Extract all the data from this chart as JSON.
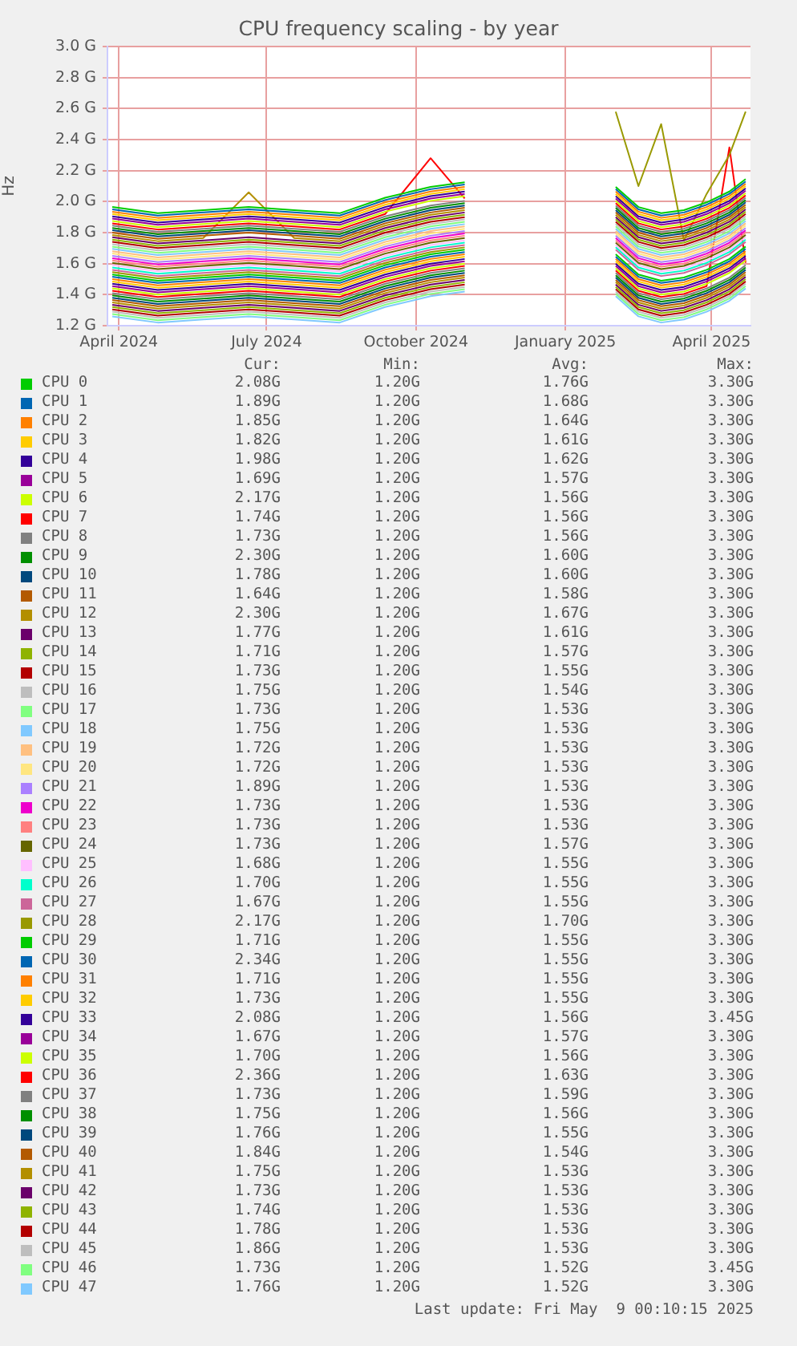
{
  "chart_data": {
    "type": "line",
    "title": "CPU frequency scaling - by year",
    "ylabel": "Hz",
    "x": [
      "2024-03-28",
      "2024-04-25",
      "2024-05-23",
      "2024-06-20",
      "2024-07-18",
      "2024-08-15",
      "2024-09-12",
      "2024-10-10",
      "2024-10-31",
      "2024-12-15",
      "2025-02-01",
      "2025-02-15",
      "2025-03-01",
      "2025-03-15",
      "2025-03-29",
      "2025-04-12",
      "2025-04-22"
    ],
    "xlim": [
      "2024-03-25",
      "2025-04-25"
    ],
    "xticks": [
      {
        "value": "2024-04-01",
        "label": "April 2024"
      },
      {
        "value": "2024-07-01",
        "label": "July 2024"
      },
      {
        "value": "2024-10-01",
        "label": "October 2024"
      },
      {
        "value": "2025-01-01",
        "label": "January 2025"
      },
      {
        "value": "2025-04-01",
        "label": "April 2025"
      }
    ],
    "ylim": [
      1.2,
      3.0
    ],
    "yticks": [
      {
        "value": 1.2,
        "label": "1.2 G"
      },
      {
        "value": 1.4,
        "label": "1.4 G"
      },
      {
        "value": 1.6,
        "label": "1.6 G"
      },
      {
        "value": 1.8,
        "label": "1.8 G"
      },
      {
        "value": 2.0,
        "label": "2.0 G"
      },
      {
        "value": 2.2,
        "label": "2.2 G"
      },
      {
        "value": 2.4,
        "label": "2.4 G"
      },
      {
        "value": 2.6,
        "label": "2.6 G"
      },
      {
        "value": 2.8,
        "label": "2.8 G"
      },
      {
        "value": 3.0,
        "label": "3.0 G"
      }
    ],
    "grid": true,
    "legend": "bottom",
    "series": [
      {
        "name": "CPU 0",
        "color": "#00cc00",
        "values": [
          1.965,
          1.925,
          1.945,
          1.965,
          1.945,
          1.925,
          2.025,
          2.095,
          2.125,
          null,
          2.095,
          1.965,
          1.925,
          1.945,
          1.995,
          2.065,
          2.145
        ]
      },
      {
        "name": "CPU 1",
        "color": "#0066b3",
        "values": [
          1.95,
          1.91,
          1.93,
          1.95,
          1.93,
          1.91,
          2.01,
          2.08,
          2.11,
          null,
          2.08,
          1.95,
          1.91,
          1.93,
          1.98,
          2.05,
          2.13
        ]
      },
      {
        "name": "CPU 2",
        "color": "#ff8000",
        "values": [
          1.935,
          1.895,
          1.915,
          1.935,
          1.915,
          1.895,
          1.995,
          2.065,
          2.095,
          null,
          2.065,
          1.935,
          1.895,
          1.915,
          1.965,
          2.035,
          2.115
        ]
      },
      {
        "name": "CPU 3",
        "color": "#ffcc00",
        "values": [
          1.92,
          1.88,
          1.9,
          1.92,
          1.9,
          1.88,
          1.98,
          2.05,
          2.08,
          null,
          2.05,
          1.92,
          1.88,
          1.9,
          1.95,
          2.02,
          2.1
        ]
      },
      {
        "name": "CPU 4",
        "color": "#330099",
        "values": [
          1.905,
          1.865,
          1.885,
          1.905,
          1.885,
          1.865,
          1.965,
          2.035,
          2.065,
          null,
          2.035,
          1.905,
          1.865,
          1.885,
          1.935,
          2.005,
          2.085
        ]
      },
      {
        "name": "CPU 5",
        "color": "#990099",
        "values": [
          1.89,
          1.85,
          1.87,
          1.89,
          1.87,
          1.85,
          1.95,
          2.02,
          2.05,
          null,
          2.02,
          1.89,
          1.85,
          1.87,
          1.92,
          1.99,
          2.07
        ]
      },
      {
        "name": "CPU 6",
        "color": "#ccff00",
        "values": [
          1.875,
          1.835,
          1.855,
          1.875,
          1.855,
          1.835,
          1.935,
          2.005,
          2.035,
          null,
          2.005,
          1.875,
          1.835,
          1.855,
          1.905,
          1.975,
          2.055
        ]
      },
      {
        "name": "CPU 7",
        "color": "#ff0000",
        "values": [
          1.86,
          1.82,
          1.84,
          1.86,
          1.84,
          1.82,
          1.92,
          2.28,
          2.02,
          null,
          1.99,
          1.86,
          1.82,
          1.84,
          1.89,
          1.96,
          2.04
        ]
      },
      {
        "name": "CPU 8",
        "color": "#808080",
        "values": [
          1.845,
          1.805,
          1.825,
          1.845,
          1.825,
          1.805,
          1.905,
          1.975,
          2.005,
          null,
          1.975,
          1.845,
          1.805,
          1.825,
          1.875,
          1.945,
          2.025
        ]
      },
      {
        "name": "CPU 9",
        "color": "#008f00",
        "values": [
          1.83,
          1.79,
          1.81,
          1.83,
          1.81,
          1.79,
          1.89,
          1.96,
          1.99,
          null,
          1.96,
          1.83,
          1.79,
          1.81,
          1.86,
          1.93,
          2.01
        ]
      },
      {
        "name": "CPU 10",
        "color": "#00487d",
        "values": [
          1.815,
          1.775,
          1.795,
          1.815,
          1.795,
          1.775,
          1.875,
          1.945,
          1.975,
          null,
          1.945,
          1.815,
          1.775,
          1.795,
          1.845,
          1.915,
          1.995
        ]
      },
      {
        "name": "CPU 11",
        "color": "#b35a00",
        "values": [
          1.8,
          1.76,
          1.78,
          1.8,
          1.78,
          1.76,
          1.86,
          1.93,
          1.96,
          null,
          1.93,
          1.8,
          1.76,
          1.78,
          1.83,
          1.9,
          1.98
        ]
      },
      {
        "name": "CPU 12",
        "color": "#b38f00",
        "values": [
          1.785,
          1.745,
          1.765,
          2.06,
          1.765,
          1.745,
          1.845,
          1.915,
          1.945,
          null,
          1.915,
          1.785,
          1.745,
          1.765,
          1.815,
          1.885,
          1.965
        ]
      },
      {
        "name": "CPU 13",
        "color": "#6b006b",
        "values": [
          1.77,
          1.73,
          1.75,
          1.77,
          1.75,
          1.73,
          1.83,
          1.9,
          1.93,
          null,
          1.9,
          1.77,
          1.73,
          1.75,
          1.8,
          1.87,
          1.95
        ]
      },
      {
        "name": "CPU 14",
        "color": "#8fb300",
        "values": [
          1.755,
          1.715,
          1.735,
          1.755,
          1.735,
          1.715,
          1.815,
          1.885,
          1.915,
          null,
          1.885,
          1.755,
          1.715,
          1.735,
          1.785,
          1.855,
          1.935
        ]
      },
      {
        "name": "CPU 15",
        "color": "#b30000",
        "values": [
          1.74,
          1.7,
          1.72,
          1.74,
          1.72,
          1.7,
          1.8,
          1.87,
          1.9,
          null,
          1.87,
          1.74,
          1.7,
          1.72,
          1.77,
          1.84,
          1.92
        ]
      },
      {
        "name": "CPU 16",
        "color": "#bebebe",
        "values": [
          1.725,
          1.685,
          1.705,
          1.725,
          1.705,
          1.685,
          1.785,
          1.855,
          1.885,
          null,
          1.855,
          1.725,
          1.685,
          1.705,
          1.755,
          1.825,
          1.905
        ]
      },
      {
        "name": "CPU 17",
        "color": "#80ff80",
        "values": [
          1.71,
          1.67,
          1.69,
          1.71,
          1.69,
          1.67,
          1.77,
          1.84,
          1.87,
          null,
          1.84,
          1.71,
          1.67,
          1.69,
          1.74,
          1.81,
          1.89
        ]
      },
      {
        "name": "CPU 18",
        "color": "#80c9ff",
        "values": [
          1.695,
          1.655,
          1.675,
          1.695,
          1.675,
          1.655,
          1.755,
          1.825,
          1.855,
          null,
          1.825,
          1.695,
          1.655,
          1.675,
          1.725,
          1.795,
          1.875
        ]
      },
      {
        "name": "CPU 19",
        "color": "#ffc080",
        "values": [
          1.68,
          1.64,
          1.66,
          1.68,
          1.66,
          1.64,
          1.74,
          1.81,
          1.84,
          null,
          1.81,
          1.68,
          1.64,
          1.66,
          1.71,
          1.78,
          1.86
        ]
      },
      {
        "name": "CPU 20",
        "color": "#ffe680",
        "values": [
          1.665,
          1.625,
          1.645,
          1.665,
          1.645,
          1.625,
          1.725,
          1.795,
          1.825,
          null,
          1.795,
          1.665,
          1.625,
          1.645,
          1.695,
          1.765,
          1.845
        ]
      },
      {
        "name": "CPU 21",
        "color": "#aa80ff",
        "values": [
          1.65,
          1.61,
          1.63,
          1.65,
          1.63,
          1.61,
          1.71,
          1.78,
          1.81,
          null,
          1.78,
          1.65,
          1.61,
          1.63,
          1.68,
          1.75,
          1.83
        ]
      },
      {
        "name": "CPU 22",
        "color": "#ee00cc",
        "values": [
          1.635,
          1.595,
          1.615,
          1.635,
          1.615,
          1.595,
          1.695,
          1.765,
          1.795,
          null,
          1.765,
          1.635,
          1.595,
          1.615,
          1.665,
          1.735,
          1.815
        ]
      },
      {
        "name": "CPU 23",
        "color": "#ff8080",
        "values": [
          1.62,
          1.58,
          1.6,
          1.62,
          1.6,
          1.58,
          1.68,
          1.75,
          1.78,
          null,
          1.75,
          1.62,
          1.58,
          1.6,
          1.65,
          1.72,
          1.8
        ]
      },
      {
        "name": "CPU 24",
        "color": "#666600",
        "values": [
          1.605,
          1.565,
          1.585,
          1.605,
          1.585,
          1.565,
          1.665,
          1.735,
          1.765,
          null,
          1.735,
          1.605,
          1.565,
          1.585,
          1.635,
          1.705,
          1.785
        ]
      },
      {
        "name": "CPU 25",
        "color": "#ffbfff",
        "values": [
          1.59,
          1.55,
          1.57,
          1.59,
          1.57,
          1.55,
          1.65,
          1.72,
          1.75,
          null,
          1.72,
          1.59,
          1.55,
          1.57,
          1.62,
          1.69,
          1.77
        ]
      },
      {
        "name": "CPU 26",
        "color": "#00ffcc",
        "values": [
          1.575,
          1.535,
          1.555,
          1.575,
          1.555,
          1.535,
          1.635,
          1.705,
          1.735,
          null,
          1.705,
          1.575,
          1.535,
          1.555,
          1.605,
          1.675,
          1.755
        ]
      },
      {
        "name": "CPU 27",
        "color": "#cc6699",
        "values": [
          1.56,
          1.52,
          1.54,
          1.56,
          1.54,
          1.52,
          1.62,
          1.69,
          1.72,
          null,
          1.69,
          1.56,
          1.52,
          1.54,
          1.59,
          1.66,
          1.74
        ]
      },
      {
        "name": "CPU 28",
        "color": "#999900",
        "values": [
          1.545,
          1.505,
          1.525,
          1.545,
          1.525,
          1.505,
          1.605,
          1.675,
          1.705,
          null,
          2.58,
          2.1,
          2.5,
          1.75,
          2.05,
          2.3,
          2.58
        ]
      },
      {
        "name": "CPU 29",
        "color": "#00cc00",
        "values": [
          1.53,
          1.49,
          1.51,
          1.53,
          1.51,
          1.49,
          1.59,
          1.66,
          1.69,
          null,
          1.66,
          1.53,
          1.49,
          1.51,
          1.56,
          1.63,
          1.71
        ]
      },
      {
        "name": "CPU 30",
        "color": "#0066b3",
        "values": [
          1.515,
          1.475,
          1.495,
          1.515,
          1.495,
          1.475,
          1.575,
          1.645,
          1.675,
          null,
          1.645,
          1.515,
          1.475,
          1.495,
          1.545,
          1.615,
          1.695
        ]
      },
      {
        "name": "CPU 31",
        "color": "#ff8000",
        "values": [
          1.5,
          1.46,
          1.48,
          1.5,
          1.48,
          1.46,
          1.56,
          1.63,
          1.66,
          null,
          1.63,
          1.5,
          1.46,
          1.48,
          1.53,
          1.6,
          1.68
        ]
      },
      {
        "name": "CPU 32",
        "color": "#ffcc00",
        "values": [
          1.485,
          1.445,
          1.465,
          1.485,
          1.465,
          1.445,
          1.545,
          1.615,
          1.645,
          null,
          1.615,
          1.485,
          1.445,
          1.465,
          1.515,
          1.585,
          1.665
        ]
      },
      {
        "name": "CPU 33",
        "color": "#330099",
        "values": [
          1.47,
          1.43,
          1.45,
          1.47,
          1.45,
          1.43,
          1.53,
          1.6,
          1.63,
          null,
          1.6,
          1.47,
          1.43,
          1.45,
          1.5,
          1.57,
          1.65
        ]
      },
      {
        "name": "CPU 34",
        "color": "#990099",
        "values": [
          1.455,
          1.415,
          1.435,
          1.455,
          1.435,
          1.415,
          1.515,
          1.585,
          1.615,
          null,
          1.585,
          1.455,
          1.415,
          1.435,
          1.485,
          1.555,
          1.635
        ]
      },
      {
        "name": "CPU 35",
        "color": "#ccff00",
        "values": [
          1.44,
          1.4,
          1.42,
          1.44,
          1.42,
          1.4,
          1.5,
          1.57,
          1.6,
          null,
          1.57,
          1.44,
          1.4,
          1.42,
          1.47,
          1.54,
          1.62
        ]
      },
      {
        "name": "CPU 36",
        "color": "#ff0000",
        "values": [
          1.425,
          1.385,
          1.405,
          1.425,
          1.405,
          1.385,
          1.485,
          1.555,
          1.585,
          null,
          1.555,
          1.425,
          1.385,
          1.405,
          1.455,
          2.35,
          1.605
        ]
      },
      {
        "name": "CPU 37",
        "color": "#808080",
        "values": [
          1.41,
          1.37,
          1.39,
          1.41,
          1.39,
          1.37,
          1.47,
          1.54,
          1.57,
          null,
          1.54,
          1.41,
          1.37,
          1.39,
          1.44,
          1.51,
          1.59
        ]
      },
      {
        "name": "CPU 38",
        "color": "#008f00",
        "values": [
          1.395,
          1.355,
          1.375,
          1.395,
          1.375,
          1.355,
          1.455,
          1.525,
          1.555,
          null,
          1.525,
          1.395,
          1.355,
          1.375,
          1.425,
          1.495,
          1.575
        ]
      },
      {
        "name": "CPU 39",
        "color": "#00487d",
        "values": [
          1.38,
          1.34,
          1.36,
          1.38,
          1.36,
          1.34,
          1.44,
          1.51,
          1.54,
          null,
          1.51,
          1.38,
          1.34,
          1.36,
          1.41,
          1.48,
          1.56
        ]
      },
      {
        "name": "CPU 40",
        "color": "#b35a00",
        "values": [
          1.365,
          1.325,
          1.345,
          1.365,
          1.345,
          1.325,
          1.425,
          1.495,
          1.525,
          null,
          1.495,
          1.365,
          1.325,
          1.345,
          1.395,
          1.465,
          1.545
        ]
      },
      {
        "name": "CPU 41",
        "color": "#b38f00",
        "values": [
          1.35,
          1.31,
          1.33,
          1.35,
          1.33,
          1.31,
          1.41,
          1.48,
          1.51,
          null,
          1.48,
          1.35,
          1.31,
          1.33,
          1.38,
          1.45,
          1.53
        ]
      },
      {
        "name": "CPU 42",
        "color": "#6b006b",
        "values": [
          1.335,
          1.295,
          1.315,
          1.335,
          1.315,
          1.295,
          1.395,
          1.465,
          1.495,
          null,
          1.465,
          1.335,
          1.295,
          1.315,
          1.365,
          1.435,
          1.515
        ]
      },
      {
        "name": "CPU 43",
        "color": "#8fb300",
        "values": [
          1.32,
          1.28,
          1.3,
          1.32,
          1.3,
          1.28,
          1.38,
          1.45,
          1.48,
          null,
          1.45,
          1.32,
          1.28,
          1.3,
          1.35,
          1.42,
          1.5
        ]
      },
      {
        "name": "CPU 44",
        "color": "#b30000",
        "values": [
          1.305,
          1.265,
          1.285,
          1.305,
          1.285,
          1.265,
          1.365,
          1.435,
          1.465,
          null,
          1.435,
          1.305,
          1.265,
          1.285,
          1.335,
          1.405,
          1.485
        ]
      },
      {
        "name": "CPU 45",
        "color": "#bebebe",
        "values": [
          1.29,
          1.25,
          1.27,
          1.29,
          1.27,
          1.25,
          1.35,
          1.42,
          1.45,
          null,
          1.42,
          1.29,
          1.25,
          1.27,
          1.32,
          1.39,
          1.47
        ]
      },
      {
        "name": "CPU 46",
        "color": "#80ff80",
        "values": [
          1.275,
          1.235,
          1.255,
          1.275,
          1.255,
          1.235,
          1.335,
          1.405,
          1.435,
          null,
          1.405,
          1.275,
          1.235,
          1.255,
          1.305,
          1.375,
          1.455
        ]
      },
      {
        "name": "CPU 47",
        "color": "#80c9ff",
        "values": [
          1.26,
          1.22,
          1.24,
          1.26,
          1.24,
          1.22,
          1.32,
          1.39,
          1.42,
          null,
          1.39,
          1.26,
          1.22,
          1.24,
          1.29,
          1.36,
          1.44
        ]
      }
    ],
    "annotations": [
      "Cur:",
      "Min:",
      "Avg:",
      "Max:",
      "2.08G",
      "1.20G",
      "1.76G",
      "3.30G",
      "1.89G",
      "1.20G",
      "1.68G",
      "3.30G",
      "1.85G",
      "1.20G",
      "1.64G",
      "3.30G",
      "1.82G",
      "1.20G",
      "1.61G",
      "3.30G",
      "1.98G",
      "1.20G",
      "1.62G",
      "3.30G",
      "1.69G",
      "1.20G",
      "1.57G",
      "3.30G",
      "2.17G",
      "1.20G",
      "1.56G",
      "3.30G",
      "1.74G",
      "1.20G",
      "1.56G",
      "3.30G",
      "1.73G",
      "1.20G",
      "1.56G",
      "3.30G",
      "2.30G",
      "1.20G",
      "1.60G",
      "3.30G",
      "1.78G",
      "1.20G",
      "1.60G",
      "3.30G",
      "1.64G",
      "1.20G",
      "1.58G",
      "3.30G",
      "2.30G",
      "1.20G",
      "1.67G",
      "3.30G",
      "1.77G",
      "1.20G",
      "1.61G",
      "3.30G",
      "1.71G",
      "1.20G",
      "1.57G",
      "3.30G",
      "1.73G",
      "1.20G",
      "1.55G",
      "3.30G",
      "1.75G",
      "1.20G",
      "1.54G",
      "3.30G",
      "1.73G",
      "1.20G",
      "1.53G",
      "3.30G",
      "1.75G",
      "1.20G",
      "1.53G",
      "3.30G",
      "1.72G",
      "1.20G",
      "1.53G",
      "3.30G",
      "1.72G",
      "1.20G",
      "1.53G",
      "3.30G",
      "1.89G",
      "1.20G",
      "1.53G",
      "3.30G",
      "1.73G",
      "1.20G",
      "1.53G",
      "3.30G",
      "1.73G",
      "1.20G",
      "1.53G",
      "3.30G",
      "1.73G",
      "1.20G",
      "1.57G",
      "3.30G",
      "1.68G",
      "1.20G",
      "1.55G",
      "3.30G",
      "1.70G",
      "1.20G",
      "1.55G",
      "3.30G",
      "1.67G",
      "1.20G",
      "1.55G",
      "3.30G",
      "2.17G",
      "1.20G",
      "1.70G",
      "3.30G",
      "1.71G",
      "1.20G",
      "1.55G",
      "3.30G",
      "2.34G",
      "1.20G",
      "1.55G",
      "3.30G",
      "1.71G",
      "1.20G",
      "1.55G",
      "3.30G",
      "1.73G",
      "1.20G",
      "1.55G",
      "3.30G",
      "2.08G",
      "1.20G",
      "1.56G",
      "3.45G",
      "1.67G",
      "1.20G",
      "1.57G",
      "3.30G",
      "1.70G",
      "1.20G",
      "1.56G",
      "3.30G",
      "2.36G",
      "1.20G",
      "1.63G",
      "3.30G",
      "1.73G",
      "1.20G",
      "1.59G",
      "3.30G",
      "1.75G",
      "1.20G",
      "1.56G",
      "3.30G",
      "1.76G",
      "1.20G",
      "1.55G",
      "3.30G",
      "1.84G",
      "1.20G",
      "1.54G",
      "3.30G",
      "1.75G",
      "1.20G",
      "1.53G",
      "3.30G",
      "1.73G",
      "1.20G",
      "1.53G",
      "3.30G",
      "1.74G",
      "1.20G",
      "1.53G",
      "3.30G",
      "1.78G",
      "1.20G",
      "1.53G",
      "3.30G",
      "1.86G",
      "1.20G",
      "1.53G",
      "3.30G",
      "1.73G",
      "1.20G",
      "1.52G",
      "3.45G",
      "1.76G",
      "1.20G",
      "1.52G",
      "3.30G",
      "Last update: Fri May  9 00:10:15 2025"
    ]
  }
}
